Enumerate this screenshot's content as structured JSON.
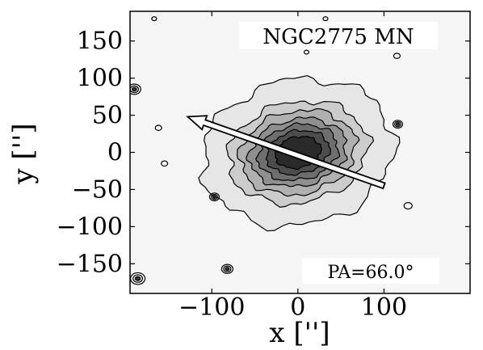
{
  "chart_data": {
    "type": "contour",
    "title": "NGC2775 MN",
    "xlabel": "x ['']",
    "ylabel": "y ['']",
    "xlim": [
      -195,
      200
    ],
    "ylim": [
      -190,
      190
    ],
    "xticks": [
      -100,
      0,
      100
    ],
    "xtick_labels": [
      "−100",
      "0",
      "100"
    ],
    "yticks": [
      150,
      100,
      50,
      0,
      -50,
      -100,
      -150
    ],
    "ytick_labels": [
      "150",
      "100",
      "50",
      "0",
      "−50",
      "−100",
      "−150"
    ],
    "annotation": "PA=66.0°",
    "position_angle_deg": 66.0,
    "arrow": {
      "from": [
        100,
        -45
      ],
      "to": [
        -128,
        48
      ]
    },
    "galaxy": {
      "center": [
        0,
        0
      ],
      "contour_levels": [
        {
          "rx": 112,
          "ry": 98,
          "color": "#e6e6e6"
        },
        {
          "rx": 82,
          "ry": 68,
          "color": "#cccccc"
        },
        {
          "rx": 68,
          "ry": 56,
          "color": "#b0b0b0"
        },
        {
          "rx": 57,
          "ry": 45,
          "color": "#8f8f8f"
        },
        {
          "rx": 47,
          "ry": 37,
          "color": "#6e6e6e"
        },
        {
          "rx": 37,
          "ry": 29,
          "color": "#4d4d4d"
        },
        {
          "rx": 27,
          "ry": 21,
          "color": "#2a2a2a"
        }
      ]
    },
    "point_sources": [
      {
        "x": -190,
        "y": 85,
        "size": 8
      },
      {
        "x": -186,
        "y": -170,
        "size": 9
      },
      {
        "x": -82,
        "y": -157,
        "size": 7
      },
      {
        "x": -97,
        "y": -60,
        "size": 6
      },
      {
        "x": 116,
        "y": 38,
        "size": 6
      },
      {
        "x": 128,
        "y": -72,
        "size": 5
      },
      {
        "x": -162,
        "y": 33,
        "size": 4
      },
      {
        "x": -155,
        "y": -15,
        "size": 4
      },
      {
        "x": 32,
        "y": 180,
        "size": 3
      },
      {
        "x": -167,
        "y": 180,
        "size": 3
      },
      {
        "x": 10,
        "y": 135,
        "size": 3
      },
      {
        "x": 115,
        "y": 130,
        "size": 4
      }
    ],
    "colors": {
      "background": "#f5f5f5",
      "frame": "#000000",
      "arrow_fill": "#ffffff",
      "arrow_stroke": "#000000"
    }
  }
}
